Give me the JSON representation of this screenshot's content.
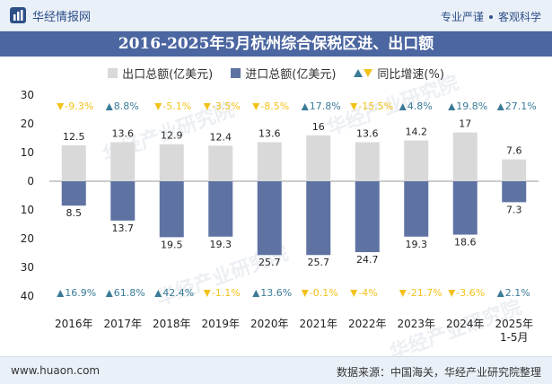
{
  "header": {
    "brand": "华经情报网",
    "tag1": "专业严谨",
    "tag2": "客观科学"
  },
  "title": "2016-2025年5月杭州综合保税区进、出口额",
  "legend": {
    "export": "出口总额(亿美元)",
    "import": "进口总额(亿美元)",
    "growth": "同比增速(%)"
  },
  "colors": {
    "export": "#d9d9d9",
    "import": "#5f73a3",
    "growth_up": "#3a7b98",
    "growth_down": "#f2c21b",
    "title_bg": "#4b66a0"
  },
  "footer": {
    "url": "www.huaon.com",
    "source": "数据来源：中国海关，华经产业研究院整理"
  },
  "watermark": "华经产业研究院",
  "chart_data": {
    "type": "bar",
    "categories": [
      "2016年",
      "2017年",
      "2018年",
      "2019年",
      "2020年",
      "2021年",
      "2022年",
      "2023年",
      "2024年",
      "2025年 1-5月"
    ],
    "ylim": [
      40,
      -30
    ],
    "yticks": [
      -30,
      -20,
      -10,
      0,
      10,
      20,
      30,
      40
    ],
    "ytick_labels": [
      "30",
      "20",
      "10",
      "0",
      "10",
      "20",
      "30",
      "40"
    ],
    "series": [
      {
        "name": "出口总额(亿美元)",
        "values": [
          12.5,
          13.6,
          12.9,
          12.4,
          13.6,
          16,
          13.6,
          14.2,
          17,
          7.6
        ]
      },
      {
        "name": "进口总额(亿美元)",
        "values": [
          8.5,
          13.7,
          19.5,
          19.3,
          25.7,
          25.7,
          24.7,
          19.3,
          18.6,
          7.3
        ]
      }
    ],
    "growth": {
      "name": "同比增速(%)",
      "export": [
        -9.3,
        8.8,
        -5.1,
        -3.5,
        -8.5,
        17.8,
        -15.5,
        4.8,
        19.8,
        27.1
      ],
      "import": [
        16.9,
        61.8,
        42.4,
        -1.1,
        13.6,
        -0.1,
        -4,
        -21.7,
        -3.6,
        2.1
      ]
    }
  }
}
